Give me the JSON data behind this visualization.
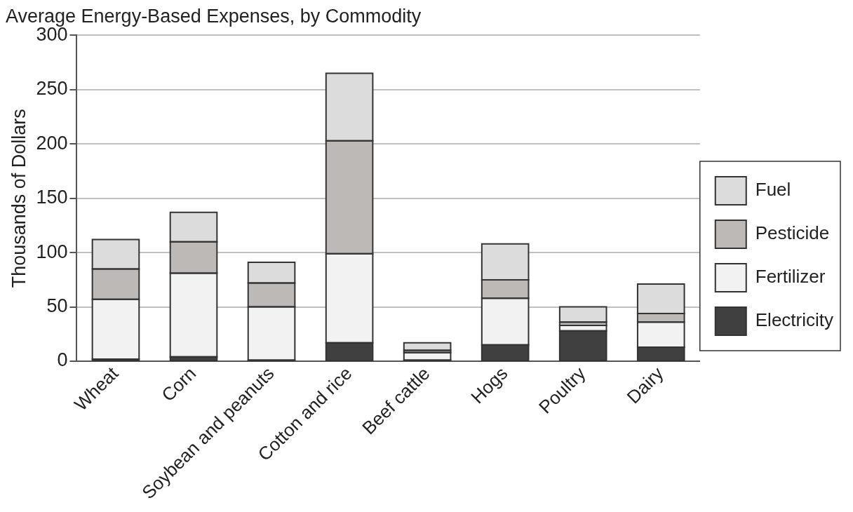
{
  "chart_data": {
    "type": "bar",
    "title": "Average Energy-Based Expenses, by Commodity",
    "ylabel": "Thousands of Dollars",
    "categories": [
      "Wheat",
      "Corn",
      "Soybean and peanuts",
      "Cotton and rice",
      "Beef cattle",
      "Hogs",
      "Poultry",
      "Dairy"
    ],
    "stacked": true,
    "ylim": [
      0,
      300
    ],
    "yticks": [
      0,
      50,
      100,
      150,
      200,
      250,
      300
    ],
    "grid": "y",
    "legend": "right",
    "series": [
      {
        "name": "Electricity",
        "color": "#404040",
        "values": [
          2,
          4,
          1,
          17,
          1,
          15,
          28,
          13
        ]
      },
      {
        "name": "Fertilizer",
        "color": "#f2f2f2",
        "values": [
          55,
          77,
          49,
          82,
          7,
          43,
          5,
          23
        ]
      },
      {
        "name": "Pesticide",
        "color": "#bdb9b6",
        "values": [
          28,
          29,
          22,
          104,
          2,
          17,
          3,
          8
        ]
      },
      {
        "name": "Fuel",
        "color": "#dcdcdc",
        "values": [
          27,
          27,
          19,
          62,
          7,
          33,
          14,
          27
        ]
      }
    ]
  }
}
